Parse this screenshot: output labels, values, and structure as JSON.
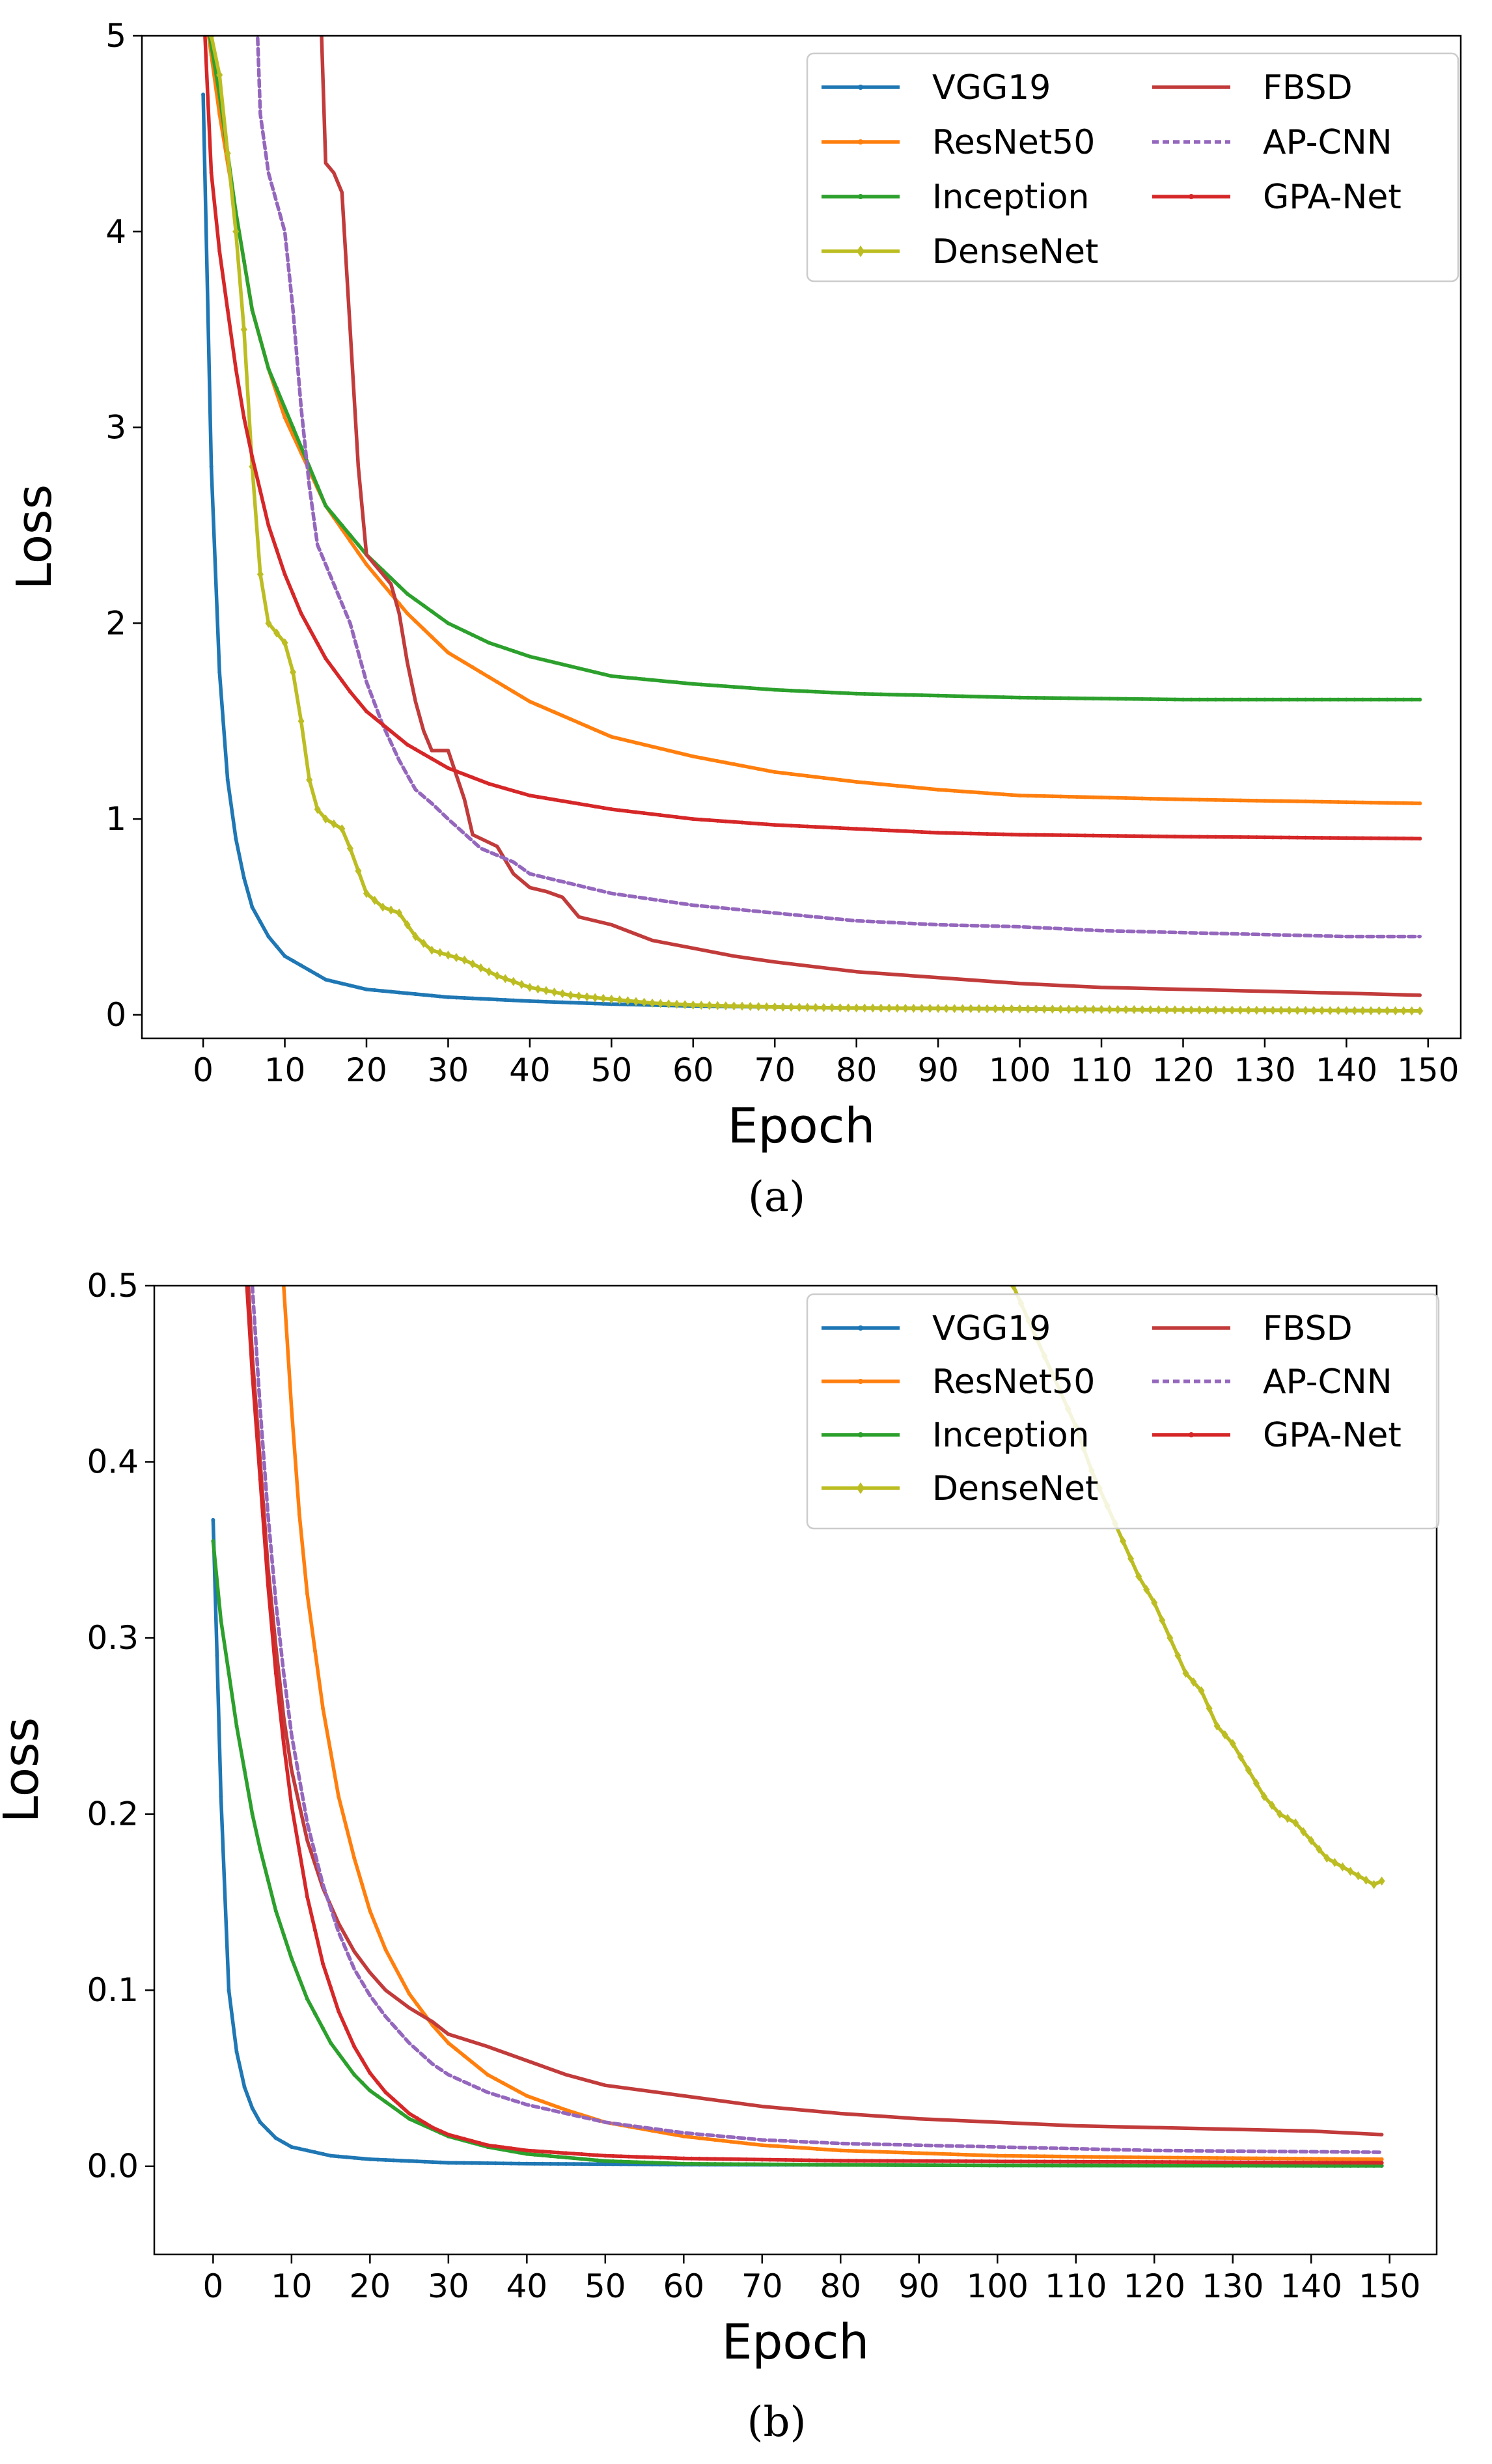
{
  "figure": {
    "caption_a": "(a)",
    "caption_b": "(b)"
  },
  "chart_data": [
    {
      "panel": "a",
      "type": "line",
      "title": "",
      "xlabel": "Epoch",
      "ylabel": "Loss",
      "xlim": [
        -7.5,
        154
      ],
      "ylim": [
        -0.12,
        5
      ],
      "xticks": [
        0,
        10,
        20,
        30,
        40,
        50,
        60,
        70,
        80,
        90,
        100,
        110,
        120,
        130,
        140,
        150
      ],
      "yticks": [
        0,
        1,
        2,
        3,
        4,
        5
      ],
      "grid": false,
      "legend": {
        "placement": "top-right",
        "columns": 2
      },
      "series": [
        {
          "name": "VGG19",
          "color": "#1f77b4",
          "dash": "",
          "marker": "dot",
          "x": [
            0,
            1,
            2,
            3,
            4,
            5,
            6,
            8,
            10,
            15,
            20,
            30,
            40,
            50,
            60,
            70,
            80,
            100,
            120,
            149
          ],
          "y": [
            4.7,
            2.8,
            1.75,
            1.2,
            0.9,
            0.7,
            0.55,
            0.4,
            0.3,
            0.18,
            0.13,
            0.09,
            0.07,
            0.055,
            0.045,
            0.04,
            0.035,
            0.03,
            0.025,
            0.02
          ]
        },
        {
          "name": "ResNet50",
          "color": "#ff7f0e",
          "dash": "",
          "marker": "dot",
          "x": [
            0,
            2,
            4,
            6,
            8,
            10,
            15,
            20,
            25,
            30,
            40,
            50,
            60,
            70,
            80,
            90,
            100,
            120,
            149
          ],
          "y": [
            5.2,
            4.6,
            4.1,
            3.6,
            3.3,
            3.05,
            2.6,
            2.3,
            2.05,
            1.85,
            1.6,
            1.42,
            1.32,
            1.24,
            1.19,
            1.15,
            1.12,
            1.1,
            1.08
          ]
        },
        {
          "name": "Inception",
          "color": "#2ca02c",
          "dash": "",
          "marker": "dot",
          "x": [
            0,
            2,
            4,
            6,
            8,
            10,
            15,
            20,
            25,
            30,
            35,
            40,
            50,
            60,
            70,
            80,
            100,
            120,
            149
          ],
          "y": [
            5.2,
            4.7,
            4.1,
            3.6,
            3.3,
            3.1,
            2.6,
            2.35,
            2.15,
            2.0,
            1.9,
            1.83,
            1.73,
            1.69,
            1.66,
            1.64,
            1.62,
            1.61,
            1.61
          ]
        },
        {
          "name": "DenseNet",
          "color": "#bcbd22",
          "dash": "",
          "marker": "diamond",
          "x": [
            0,
            2,
            4,
            5,
            6,
            7,
            8,
            10,
            11,
            12,
            13,
            14,
            15,
            17,
            18,
            20,
            22,
            24,
            26,
            28,
            32,
            36,
            40,
            45,
            50,
            55,
            60,
            70,
            80,
            100,
            120,
            149
          ],
          "y": [
            5.2,
            4.8,
            4.0,
            3.5,
            2.8,
            2.25,
            2.0,
            1.9,
            1.75,
            1.5,
            1.2,
            1.05,
            1.0,
            0.95,
            0.85,
            0.62,
            0.55,
            0.52,
            0.4,
            0.33,
            0.28,
            0.2,
            0.14,
            0.1,
            0.08,
            0.06,
            0.05,
            0.04,
            0.035,
            0.03,
            0.025,
            0.02
          ]
        },
        {
          "name": "FBSD",
          "color": "#c23b3b",
          "dash": "",
          "marker": "none",
          "x": [
            14,
            14.5,
            15,
            16,
            17,
            18,
            19,
            20,
            21,
            22,
            23,
            24,
            25,
            26,
            27,
            28,
            30,
            32,
            33,
            35,
            36,
            38,
            40,
            42,
            44,
            46,
            48,
            50,
            55,
            60,
            65,
            70,
            80,
            90,
            100,
            110,
            120,
            130,
            140,
            149
          ],
          "y": [
            5.2,
            5.0,
            4.35,
            4.3,
            4.2,
            3.5,
            2.8,
            2.35,
            2.3,
            2.25,
            2.2,
            2.05,
            1.8,
            1.6,
            1.45,
            1.35,
            1.35,
            1.1,
            0.92,
            0.88,
            0.86,
            0.72,
            0.65,
            0.63,
            0.6,
            0.5,
            0.48,
            0.46,
            0.38,
            0.34,
            0.3,
            0.27,
            0.22,
            0.19,
            0.16,
            0.14,
            0.13,
            0.12,
            0.11,
            0.1
          ]
        },
        {
          "name": "AP-CNN",
          "color": "#9467bd",
          "dash": "10,6",
          "marker": "none",
          "x": [
            6.5,
            7,
            8,
            9,
            10,
            11,
            12,
            13,
            14,
            15,
            16,
            18,
            20,
            22,
            24,
            26,
            28,
            30,
            34,
            38,
            40,
            50,
            60,
            70,
            80,
            90,
            100,
            110,
            120,
            130,
            140,
            149
          ],
          "y": [
            5.2,
            4.6,
            4.3,
            4.15,
            4.0,
            3.6,
            3.1,
            2.7,
            2.4,
            2.3,
            2.2,
            2.0,
            1.7,
            1.48,
            1.3,
            1.15,
            1.08,
            1.0,
            0.85,
            0.78,
            0.72,
            0.62,
            0.56,
            0.52,
            0.48,
            0.46,
            0.45,
            0.43,
            0.42,
            0.41,
            0.4,
            0.4
          ]
        },
        {
          "name": "GPA-Net",
          "color": "#d62728",
          "dash": "",
          "marker": "dot",
          "x": [
            0,
            1,
            2,
            3,
            4,
            5,
            6,
            8,
            10,
            12,
            15,
            18,
            20,
            25,
            30,
            35,
            40,
            50,
            60,
            70,
            80,
            90,
            100,
            120,
            149
          ],
          "y": [
            5.2,
            4.3,
            3.9,
            3.6,
            3.3,
            3.05,
            2.85,
            2.5,
            2.25,
            2.05,
            1.82,
            1.65,
            1.55,
            1.38,
            1.26,
            1.18,
            1.12,
            1.05,
            1.0,
            0.97,
            0.95,
            0.93,
            0.92,
            0.91,
            0.9
          ]
        }
      ]
    },
    {
      "panel": "b",
      "type": "line",
      "title": "",
      "xlabel": "Epoch",
      "ylabel": "Loss",
      "xlim": [
        -7.5,
        156
      ],
      "ylim": [
        -0.05,
        0.5
      ],
      "xticks": [
        0,
        10,
        20,
        30,
        40,
        50,
        60,
        70,
        80,
        90,
        100,
        110,
        120,
        130,
        140,
        150
      ],
      "yticks": [
        0.0,
        0.1,
        0.2,
        0.3,
        0.4,
        0.5
      ],
      "grid": false,
      "legend": {
        "placement": "top-right",
        "columns": 2
      },
      "series": [
        {
          "name": "VGG19",
          "color": "#1f77b4",
          "dash": "",
          "marker": "dot",
          "x": [
            0,
            0.5,
            1,
            2,
            3,
            4,
            5,
            6,
            8,
            10,
            15,
            20,
            30,
            40,
            60,
            80,
            100,
            149
          ],
          "y": [
            0.367,
            0.29,
            0.21,
            0.1,
            0.065,
            0.045,
            0.033,
            0.025,
            0.016,
            0.011,
            0.006,
            0.004,
            0.002,
            0.0015,
            0.001,
            0.0008,
            0.0005,
            0.0003
          ]
        },
        {
          "name": "ResNet50",
          "color": "#ff7f0e",
          "dash": "",
          "marker": "dot",
          "x": [
            9,
            10,
            11,
            12,
            14,
            16,
            18,
            20,
            22,
            25,
            28,
            30,
            35,
            40,
            45,
            50,
            60,
            70,
            80,
            100,
            120,
            149
          ],
          "y": [
            0.5,
            0.43,
            0.37,
            0.325,
            0.26,
            0.21,
            0.175,
            0.145,
            0.123,
            0.098,
            0.08,
            0.07,
            0.052,
            0.04,
            0.032,
            0.025,
            0.017,
            0.012,
            0.009,
            0.006,
            0.005,
            0.004
          ]
        },
        {
          "name": "Inception",
          "color": "#2ca02c",
          "dash": "",
          "marker": "dot",
          "x": [
            0,
            1,
            2,
            3,
            4,
            5,
            6,
            8,
            10,
            12,
            15,
            18,
            20,
            25,
            30,
            35,
            40,
            50,
            60,
            80,
            100,
            149
          ],
          "y": [
            0.355,
            0.31,
            0.28,
            0.25,
            0.225,
            0.2,
            0.18,
            0.145,
            0.118,
            0.095,
            0.07,
            0.052,
            0.043,
            0.027,
            0.017,
            0.011,
            0.007,
            0.003,
            0.0015,
            0.0008,
            0.0005,
            0.0003
          ]
        },
        {
          "name": "DenseNet",
          "color": "#bcbd22",
          "dash": "",
          "marker": "diamond",
          "x": [
            102,
            104,
            106,
            108,
            110,
            112,
            114,
            116,
            118,
            120,
            122,
            124,
            126,
            128,
            130,
            132,
            134,
            136,
            138,
            140,
            142,
            144,
            146,
            148,
            149
          ],
          "y": [
            0.5,
            0.48,
            0.46,
            0.44,
            0.42,
            0.395,
            0.375,
            0.355,
            0.335,
            0.32,
            0.3,
            0.28,
            0.27,
            0.25,
            0.24,
            0.225,
            0.21,
            0.2,
            0.195,
            0.185,
            0.175,
            0.17,
            0.165,
            0.16,
            0.162
          ]
        },
        {
          "name": "FBSD",
          "color": "#c23b3b",
          "dash": "",
          "marker": "none",
          "x": [
            4.5,
            5,
            6,
            7,
            8,
            9,
            10,
            12,
            14,
            16,
            18,
            20,
            22,
            25,
            28,
            30,
            35,
            40,
            45,
            50,
            60,
            70,
            80,
            90,
            100,
            110,
            120,
            130,
            140,
            149
          ],
          "y": [
            0.5,
            0.46,
            0.4,
            0.34,
            0.295,
            0.255,
            0.225,
            0.185,
            0.158,
            0.138,
            0.122,
            0.11,
            0.1,
            0.09,
            0.082,
            0.075,
            0.068,
            0.06,
            0.052,
            0.046,
            0.04,
            0.034,
            0.03,
            0.027,
            0.025,
            0.023,
            0.022,
            0.021,
            0.02,
            0.018
          ]
        },
        {
          "name": "AP-CNN",
          "color": "#9467bd",
          "dash": "10,6",
          "marker": "none",
          "x": [
            5,
            6,
            7,
            8,
            9,
            10,
            12,
            14,
            16,
            18,
            20,
            22,
            25,
            28,
            30,
            35,
            40,
            50,
            60,
            70,
            80,
            100,
            120,
            149
          ],
          "y": [
            0.5,
            0.43,
            0.37,
            0.32,
            0.28,
            0.245,
            0.195,
            0.16,
            0.133,
            0.112,
            0.097,
            0.085,
            0.07,
            0.058,
            0.052,
            0.042,
            0.035,
            0.025,
            0.019,
            0.015,
            0.013,
            0.011,
            0.009,
            0.008
          ]
        },
        {
          "name": "GPA-Net",
          "color": "#d62728",
          "dash": "",
          "marker": "dot",
          "x": [
            4.3,
            5,
            6,
            7,
            8,
            9,
            10,
            12,
            14,
            16,
            18,
            20,
            22,
            25,
            28,
            30,
            35,
            40,
            50,
            60,
            70,
            80,
            100,
            120,
            149
          ],
          "y": [
            0.5,
            0.45,
            0.39,
            0.33,
            0.28,
            0.24,
            0.205,
            0.153,
            0.115,
            0.088,
            0.068,
            0.053,
            0.042,
            0.03,
            0.022,
            0.018,
            0.012,
            0.009,
            0.006,
            0.0045,
            0.0038,
            0.0032,
            0.0028,
            0.0025,
            0.002
          ]
        }
      ]
    }
  ]
}
